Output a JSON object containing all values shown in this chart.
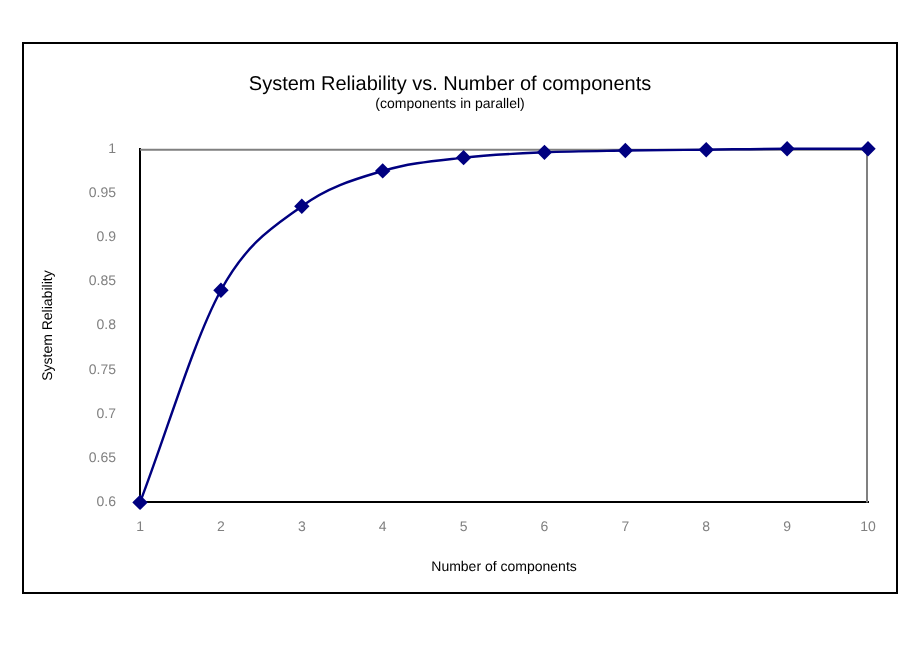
{
  "chart_data": {
    "type": "line",
    "title": "System Reliability vs. Number of components",
    "subtitle": "(components in parallel)",
    "xlabel": "Number of components",
    "ylabel": "System Reliability",
    "x": [
      1,
      2,
      3,
      4,
      5,
      6,
      7,
      8,
      9,
      10
    ],
    "series": [
      {
        "color": "#000080",
        "values": [
          0.6,
          0.84,
          0.935,
          0.975,
          0.99,
          0.996,
          0.998,
          0.999,
          1,
          1
        ]
      }
    ],
    "xlim": [
      1,
      10
    ],
    "xticks": [
      1,
      2,
      3,
      4,
      5,
      6,
      7,
      8,
      9,
      10
    ],
    "ylim": [
      0.6,
      1
    ],
    "yticks": [
      0.6,
      0.65,
      0.7,
      0.75,
      0.8,
      0.85,
      0.9,
      0.95,
      1
    ],
    "grid": false,
    "legend": false,
    "marker": "diamond",
    "line_style": "solid"
  }
}
